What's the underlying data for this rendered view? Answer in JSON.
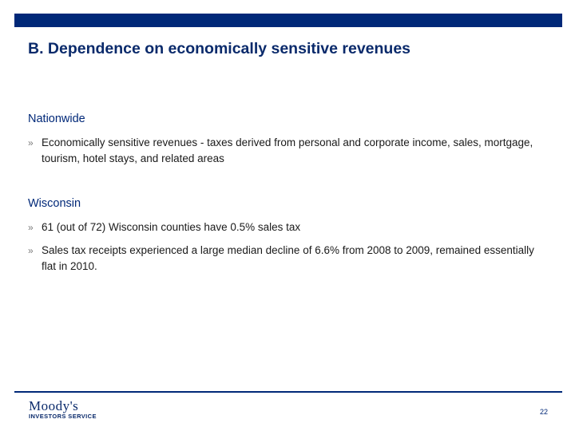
{
  "slide": {
    "title": "B. Dependence on economically sensitive revenues",
    "sections": [
      {
        "heading": "Nationwide",
        "bullets": [
          "Economically sensitive revenues - taxes derived from personal and corporate income, sales, mortgage, tourism, hotel stays, and related areas"
        ]
      },
      {
        "heading": "Wisconsin",
        "bullets": [
          "61 (out of 72) Wisconsin counties have 0.5% sales tax",
          "Sales tax receipts experienced a large median decline of 6.6% from 2008 to 2009, remained essentially flat in 2010."
        ]
      }
    ],
    "bullet_glyph": "»"
  },
  "footer": {
    "logo_main": "Moody's",
    "logo_sub": "INVESTORS SERVICE",
    "page_number": "22"
  },
  "colors": {
    "brand_navy": "#002878",
    "title": "#0a2a6b",
    "bullet_mark": "#7a7a7a"
  }
}
